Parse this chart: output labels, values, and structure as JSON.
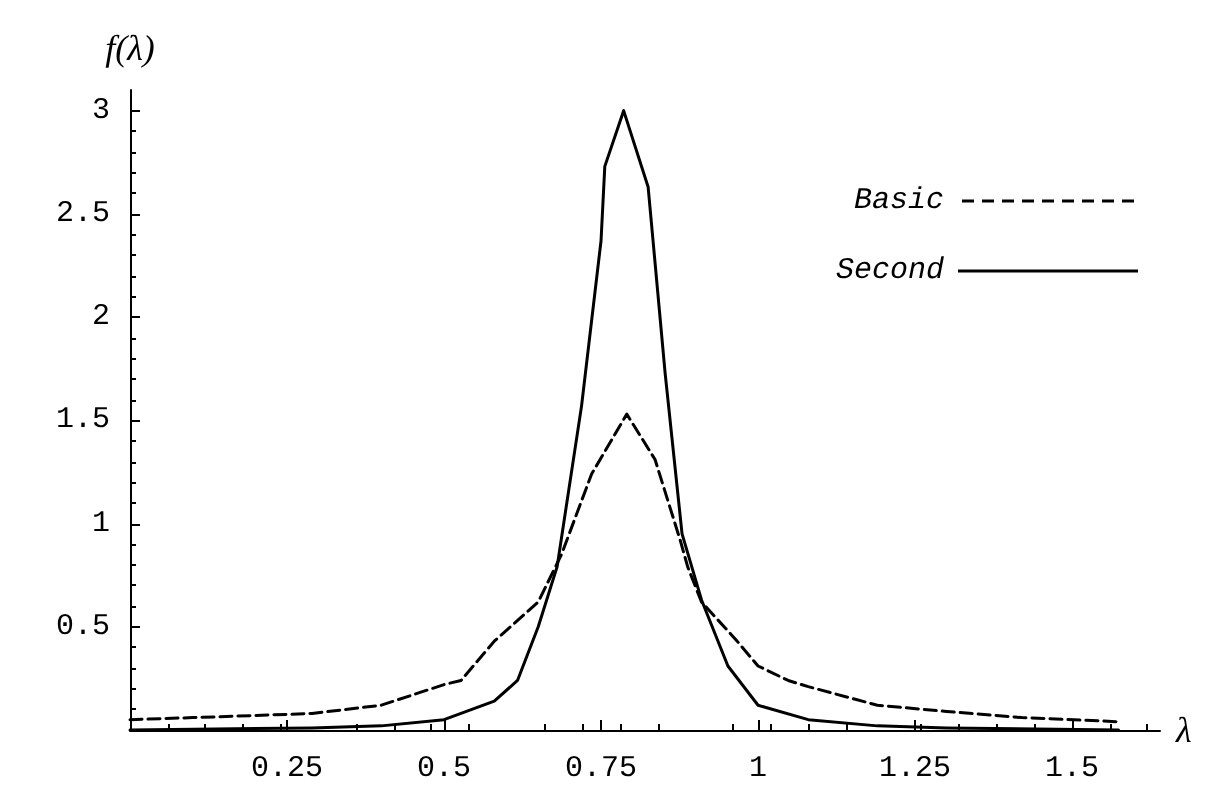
{
  "chart_data": {
    "type": "line",
    "xlabel": "λ",
    "ylabel": "f(λ)",
    "xlim": [
      0,
      1.64
    ],
    "ylim": [
      0,
      3.1
    ],
    "xticks": [
      0.25,
      0.5,
      0.75,
      1,
      1.25,
      1.5
    ],
    "yticks": [
      0.5,
      1,
      1.5,
      2,
      2.5,
      3
    ],
    "grid": false,
    "legend": "top right",
    "marker": "none",
    "series": [
      {
        "name": "Basic",
        "color": "#000000",
        "line_style": "dashed",
        "x": [
          0,
          0.1,
          0.29,
          0.4,
          0.5,
          0.527,
          0.58,
          0.65,
          0.687,
          0.735,
          0.791,
          0.836,
          0.876,
          0.888,
          0.91,
          0.964,
          1.0,
          1.048,
          1.08,
          1.19,
          1.3,
          1.42,
          1.574
        ],
        "values": [
          0.05,
          0.06,
          0.08,
          0.12,
          0.22,
          0.24,
          0.43,
          0.62,
          0.85,
          1.24,
          1.53,
          1.31,
          0.92,
          0.79,
          0.62,
          0.44,
          0.31,
          0.24,
          0.21,
          0.12,
          0.09,
          0.06,
          0.04
        ]
      },
      {
        "name": "Second",
        "color": "#000000",
        "line_style": "solid",
        "x": [
          0,
          0.29,
          0.4,
          0.5,
          0.58,
          0.617,
          0.65,
          0.68,
          0.719,
          0.75,
          0.756,
          0.786,
          0.825,
          0.852,
          0.879,
          0.91,
          0.952,
          1.0,
          1.08,
          1.19,
          1.3,
          1.574
        ],
        "values": [
          0,
          0.01,
          0.02,
          0.05,
          0.14,
          0.24,
          0.5,
          0.79,
          1.57,
          2.37,
          2.73,
          3.0,
          2.63,
          1.73,
          0.95,
          0.63,
          0.31,
          0.12,
          0.05,
          0.02,
          0.01,
          0
        ]
      }
    ]
  }
}
